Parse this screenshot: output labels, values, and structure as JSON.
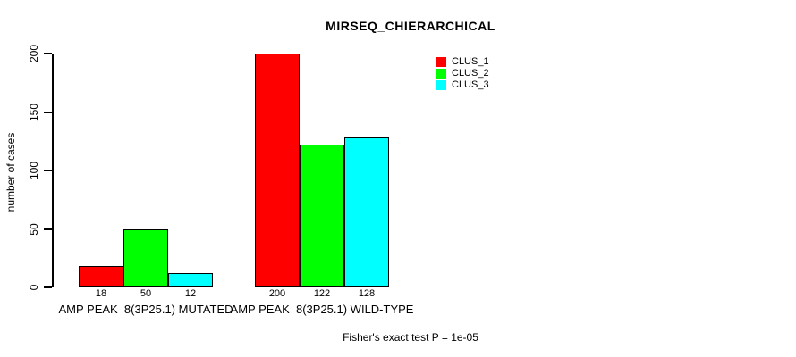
{
  "chart_data": {
    "type": "bar",
    "title": "MIRSEQ_CHIERARCHICAL",
    "ylabel": "number of cases",
    "xlabel": "",
    "ylim": [
      0,
      200
    ],
    "yticks": [
      0,
      50,
      100,
      150,
      200
    ],
    "grid": false,
    "legend_position": "top-right",
    "categories": [
      "AMP PEAK  8(3P25.1) MUTATED",
      "AMP PEAK  8(3P25.1) WILD-TYPE"
    ],
    "series": [
      {
        "name": "CLUS_1",
        "color": "#ff0000",
        "values": [
          18,
          200
        ]
      },
      {
        "name": "CLUS_2",
        "color": "#00ff00",
        "values": [
          50,
          122
        ]
      },
      {
        "name": "CLUS_3",
        "color": "#00ffff",
        "values": [
          12,
          128
        ]
      }
    ],
    "bar_value_labels": [
      [
        "18",
        "50",
        "12"
      ],
      [
        "200",
        "122",
        "128"
      ]
    ],
    "annotation": "Fisher's exact test P = 1e-05"
  }
}
